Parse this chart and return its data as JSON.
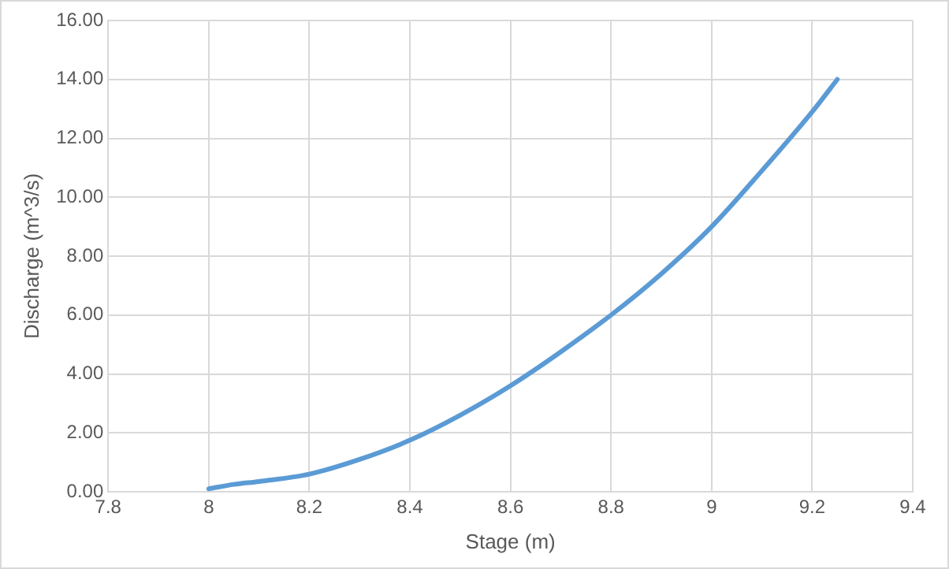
{
  "chart_data": {
    "type": "line",
    "xlabel": "Stage (m)",
    "ylabel": "Discharge (m^3/s)",
    "x": [
      8,
      8.05,
      8.1,
      8.2,
      8.3,
      8.4,
      8.5,
      8.6,
      8.7,
      8.8,
      8.9,
      9,
      9.1,
      9.2,
      9.25
    ],
    "series": [
      {
        "color": "#5b9bd5",
        "values": [
          0.1,
          0.25,
          0.35,
          0.6,
          1.1,
          1.75,
          2.6,
          3.6,
          4.75,
          6.0,
          7.4,
          9.0,
          10.9,
          12.9,
          14.0
        ]
      }
    ],
    "xlim": [
      7.8,
      9.4
    ],
    "xticks": [
      7.8,
      8,
      8.2,
      8.4,
      8.6,
      8.8,
      9,
      9.2,
      9.4
    ],
    "ylim": [
      0,
      16
    ],
    "yticks": [
      {
        "value": 0,
        "label": "0.00"
      },
      {
        "value": 2,
        "label": "2.00"
      },
      {
        "value": 4,
        "label": "4.00"
      },
      {
        "value": 6,
        "label": "6.00"
      },
      {
        "value": 8,
        "label": "8.00"
      },
      {
        "value": 10,
        "label": "10.00"
      },
      {
        "value": 12,
        "label": "12.00"
      },
      {
        "value": 14,
        "label": "14.00"
      },
      {
        "value": 16,
        "label": "16.00"
      }
    ],
    "grid": true,
    "marker": "none",
    "line_style": "solid",
    "legend": false
  }
}
